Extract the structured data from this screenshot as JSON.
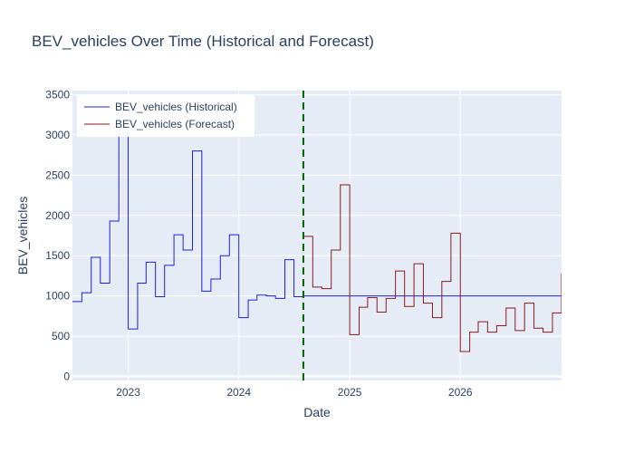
{
  "chart_data": {
    "type": "line",
    "title": "BEV_vehicles Over Time (Historical and Forecast)",
    "xlabel": "Date",
    "ylabel": "BEV_vehicles",
    "x_ticks": [
      "2023",
      "2024",
      "2025",
      "2026"
    ],
    "x_tick_dates": [
      "2023-01-01",
      "2024-01-01",
      "2025-01-01",
      "2026-01-01"
    ],
    "y_ticks": [
      0,
      500,
      1000,
      1500,
      2000,
      2500,
      3000,
      3500
    ],
    "xlim": [
      "2022-07-01",
      "2026-12-01"
    ],
    "ylim": [
      -50,
      3550
    ],
    "grid": true,
    "legend_position": "top-left",
    "forecast_start": "2024-08-01",
    "forecast_start_style": "dashed green vertical line",
    "series": [
      {
        "name": "BEV_vehicles (Historical)",
        "color": "#1f1fd6",
        "shape": "step",
        "x": [
          "2022-07-01",
          "2022-08-01",
          "2022-09-01",
          "2022-10-01",
          "2022-11-01",
          "2022-12-01",
          "2023-01-01",
          "2023-02-01",
          "2023-03-01",
          "2023-04-01",
          "2023-05-01",
          "2023-06-01",
          "2023-07-01",
          "2023-08-01",
          "2023-09-01",
          "2023-10-01",
          "2023-11-01",
          "2023-12-01",
          "2024-01-01",
          "2024-02-01",
          "2024-03-01",
          "2024-04-01",
          "2024-05-01",
          "2024-06-01",
          "2024-07-01",
          "2024-08-01"
        ],
        "y": [
          930,
          1040,
          1480,
          1160,
          1930,
          3400,
          590,
          1160,
          1420,
          990,
          1380,
          1760,
          1570,
          2800,
          1060,
          1210,
          1500,
          1760,
          730,
          950,
          1010,
          1000,
          970,
          1450,
          990,
          1000
        ]
      },
      {
        "name": "BEV_vehicles (Forecast)",
        "color": "#8b1a1a",
        "shape": "step",
        "x": [
          "2024-08-01",
          "2024-09-01",
          "2024-10-01",
          "2024-11-01",
          "2024-12-01",
          "2025-01-01",
          "2025-02-01",
          "2025-03-01",
          "2025-04-01",
          "2025-05-01",
          "2025-06-01",
          "2025-07-01",
          "2025-08-01",
          "2025-09-01",
          "2025-10-01",
          "2025-11-01",
          "2025-12-01",
          "2026-01-01",
          "2026-02-01",
          "2026-03-01",
          "2026-04-01",
          "2026-05-01",
          "2026-06-01",
          "2026-07-01",
          "2026-08-01",
          "2026-09-01",
          "2026-10-01",
          "2026-11-01",
          "2026-12-01"
        ],
        "y": [
          1740,
          1110,
          1090,
          1570,
          2380,
          520,
          860,
          980,
          800,
          970,
          1310,
          870,
          1400,
          910,
          730,
          1180,
          1780,
          310,
          550,
          680,
          550,
          630,
          850,
          570,
          910,
          600,
          550,
          790,
          1280
        ]
      }
    ]
  }
}
